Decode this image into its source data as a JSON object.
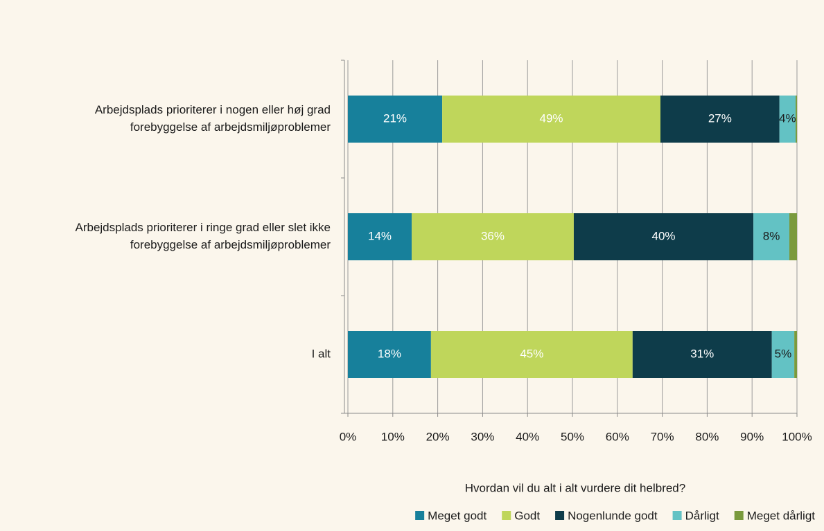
{
  "chart_data": {
    "type": "stacked_barh",
    "categories": [
      [
        "Arbejdsplads prioriterer i nogen eller høj grad",
        "forebyggelse af arbejdsmiljøproblemer"
      ],
      [
        "Arbejdsplads prioriterer i ringe grad eller slet ikke",
        "forebyggelse af arbejdsmiljøproblemer"
      ],
      [
        "I alt"
      ]
    ],
    "series": [
      {
        "name": "Meget godt",
        "color": "#17809b",
        "label_color": "#ffffff",
        "values": [
          21.0,
          14.2,
          18.5
        ],
        "value_labels": [
          "21%",
          "14%",
          "18%"
        ]
      },
      {
        "name": "Godt",
        "color": "#bfd65b",
        "label_color": "#ffffff",
        "values": [
          48.6,
          36.1,
          44.9
        ],
        "value_labels": [
          "49%",
          "36%",
          "45%"
        ]
      },
      {
        "name": "Nogenlunde godt",
        "color": "#0e3c4a",
        "label_color": "#ffffff",
        "values": [
          26.5,
          40.0,
          31.0
        ],
        "value_labels": [
          "27%",
          "40%",
          "31%"
        ]
      },
      {
        "name": "Dårligt",
        "color": "#63c2c4",
        "label_color": "#1a1a1a",
        "values": [
          3.6,
          8.0,
          5.0
        ],
        "value_labels": [
          "4%",
          "8%",
          "5%"
        ]
      },
      {
        "name": "Meget dårligt",
        "color": "#7a9a3d",
        "label_color": "#1a1a1a",
        "values": [
          0.3,
          1.7,
          0.6
        ],
        "value_labels": [
          null,
          null,
          null
        ]
      }
    ],
    "xlim": [
      0,
      100
    ],
    "xticks": [
      {
        "value": 0,
        "label": "0%"
      },
      {
        "value": 10,
        "label": "10%"
      },
      {
        "value": 20,
        "label": "20%"
      },
      {
        "value": 30,
        "label": "30%"
      },
      {
        "value": 40,
        "label": "40%"
      },
      {
        "value": 50,
        "label": "50%"
      },
      {
        "value": 60,
        "label": "60%"
      },
      {
        "value": 70,
        "label": "70%"
      },
      {
        "value": 80,
        "label": "80%"
      },
      {
        "value": 90,
        "label": "90%"
      },
      {
        "value": 100,
        "label": "100%"
      }
    ],
    "grid": true,
    "legend_title": "Hvordan vil du alt i alt vurdere dit helbred?",
    "legend": "bottom"
  }
}
